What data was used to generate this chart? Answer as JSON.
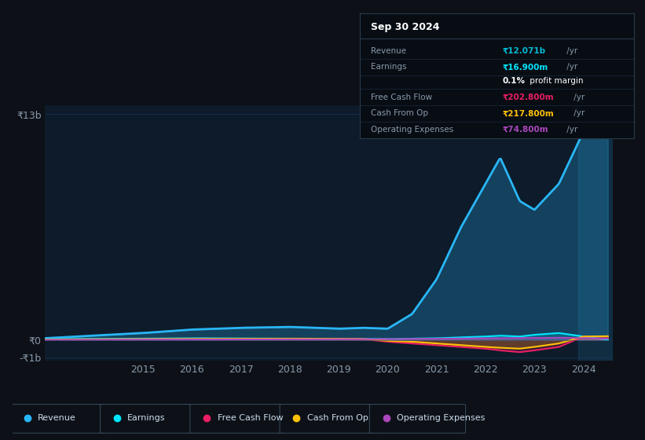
{
  "background_color": "#0d1117",
  "plot_bg_color": "#0d1b2a",
  "info_panel": {
    "date": "Sep 30 2024",
    "rows": [
      {
        "label": "Revenue",
        "value": "₹12.071b",
        "value_color": "#00bcd4"
      },
      {
        "label": "Earnings",
        "value": "₹16.900m",
        "value_color": "#00e5ff"
      },
      {
        "label": "",
        "value": "0.1% profit margin",
        "value_color": "#ffffff"
      },
      {
        "label": "Free Cash Flow",
        "value": "₹202.800m",
        "value_color": "#e91e63"
      },
      {
        "label": "Cash From Op",
        "value": "₹217.800m",
        "value_color": "#ffc107"
      },
      {
        "label": "Operating Expenses",
        "value": "₹74.800m",
        "value_color": "#ab47bc"
      }
    ]
  },
  "years": [
    2013,
    2014,
    2015,
    2016,
    2017,
    2018,
    2019,
    2019.5,
    2020,
    2020.5,
    2021,
    2021.5,
    2022,
    2022.3,
    2022.7,
    2023,
    2023.5,
    2024,
    2024.5
  ],
  "revenue": [
    100,
    250,
    400,
    600,
    700,
    750,
    650,
    700,
    650,
    1500,
    3500,
    6500,
    9000,
    10500,
    8000,
    7500,
    9000,
    12000,
    12071
  ],
  "earnings": [
    50,
    60,
    80,
    100,
    90,
    80,
    70,
    60,
    50,
    80,
    100,
    150,
    200,
    250,
    200,
    300,
    400,
    200,
    16.9
  ],
  "free_cash_flow": [
    20,
    30,
    40,
    50,
    60,
    70,
    50,
    40,
    -100,
    -200,
    -300,
    -400,
    -500,
    -600,
    -700,
    -600,
    -400,
    200,
    202.8
  ],
  "cash_from_op": [
    30,
    40,
    50,
    60,
    70,
    80,
    70,
    60,
    -50,
    -100,
    -200,
    -300,
    -400,
    -450,
    -500,
    -400,
    -200,
    200,
    217.8
  ],
  "operating_expenses": [
    10,
    15,
    20,
    25,
    30,
    35,
    40,
    45,
    50,
    60,
    70,
    80,
    90,
    100,
    110,
    120,
    130,
    100,
    74.8
  ],
  "ylim": [
    -1200,
    13500
  ],
  "yticks": [
    -1000,
    0,
    13000
  ],
  "ytick_labels": [
    "-₹1b",
    "₹0",
    "₹13b"
  ],
  "xticks": [
    2015,
    2016,
    2017,
    2018,
    2019,
    2020,
    2021,
    2022,
    2023,
    2024
  ],
  "line_colors": {
    "revenue": "#29b6f6",
    "earnings": "#00e5ff",
    "free_cash_flow": "#e91e63",
    "cash_from_op": "#ffc107",
    "operating_expenses": "#ab47bc"
  },
  "grid_color": "#1e3a5f",
  "text_color": "#8899aa",
  "panel_bg": "#080d14",
  "panel_border": "#2a3a4a"
}
